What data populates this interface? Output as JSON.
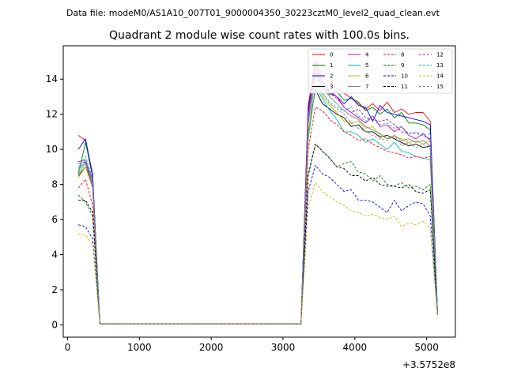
{
  "chart_data": {
    "type": "line",
    "suptitle": "Data file: modeM0/AS1A10_007T01_9000004350_30223cztM0_level2_quad_clean.evt",
    "title": "Quadrant 2 module wise count rates with 100.0s bins.",
    "xlabel": "",
    "ylabel": "",
    "x_offset_label": "+3.5752e8",
    "xlim": [
      -60,
      5400
    ],
    "ylim": [
      -0.7,
      15.9
    ],
    "xticks": [
      0,
      1000,
      2000,
      3000,
      4000,
      5000
    ],
    "yticks": [
      0,
      2,
      4,
      6,
      8,
      10,
      12,
      14
    ],
    "legend_position": "upper-right",
    "legend_columns": 4,
    "x": [
      150,
      250,
      350,
      450,
      550,
      650,
      750,
      850,
      950,
      1050,
      1150,
      1250,
      1350,
      1450,
      1550,
      1650,
      1750,
      1850,
      1950,
      2050,
      2150,
      2250,
      2350,
      2450,
      2550,
      2650,
      2750,
      2850,
      2950,
      3050,
      3150,
      3250,
      3350,
      3450,
      3550,
      3650,
      3750,
      3850,
      3950,
      4050,
      4150,
      4250,
      4350,
      4450,
      4550,
      4650,
      4750,
      4850,
      4950,
      5050,
      5150
    ],
    "series": [
      {
        "name": "0",
        "color": "#ff0000",
        "dash": "solid",
        "before": [
          10.8,
          10.5,
          8.6
        ],
        "after": [
          12.5,
          15.0,
          14.2,
          13.8,
          13.5,
          13.2,
          12.9,
          12.6,
          12.3,
          12.6,
          12.2,
          12.7,
          12.1,
          12.3,
          12.0,
          12.1,
          12.1,
          11.6,
          0.8
        ]
      },
      {
        "name": "1",
        "color": "#008000",
        "dash": "solid",
        "before": [
          8.6,
          10.4,
          8.4
        ],
        "after": [
          12.2,
          14.3,
          13.6,
          13.1,
          13.3,
          12.8,
          12.9,
          12.7,
          12.2,
          12.4,
          12.0,
          12.3,
          11.8,
          12.1,
          11.5,
          11.5,
          11.4,
          11.1,
          0.7
        ]
      },
      {
        "name": "2",
        "color": "#0000ff",
        "dash": "solid",
        "before": [
          10.0,
          10.6,
          8.5
        ],
        "after": [
          12.4,
          14.6,
          13.9,
          13.3,
          13.0,
          12.6,
          13.0,
          12.5,
          12.4,
          11.6,
          12.5,
          12.1,
          12.0,
          11.9,
          11.8,
          11.7,
          11.6,
          11.4,
          0.8
        ]
      },
      {
        "name": "3",
        "color": "#000000",
        "dash": "solid",
        "before": [
          8.5,
          9.0,
          8.0
        ],
        "after": [
          11.0,
          13.4,
          12.6,
          12.3,
          12.0,
          11.8,
          11.3,
          11.4,
          11.0,
          11.0,
          10.7,
          10.8,
          10.6,
          10.4,
          10.2,
          10.3,
          10.1,
          10.2,
          0.7
        ]
      },
      {
        "name": "4",
        "color": "#c000c0",
        "dash": "solid",
        "before": [
          9.3,
          9.4,
          8.2
        ],
        "after": [
          12.0,
          15.0,
          13.8,
          13.2,
          13.0,
          12.4,
          12.1,
          11.8,
          11.5,
          11.9,
          11.3,
          11.4,
          11.0,
          11.3,
          10.8,
          10.6,
          10.9,
          10.5,
          0.8
        ]
      },
      {
        "name": "5",
        "color": "#00bfbf",
        "dash": "solid",
        "before": [
          8.8,
          9.3,
          8.0
        ],
        "after": [
          10.5,
          13.6,
          12.9,
          12.2,
          11.7,
          11.0,
          11.0,
          10.8,
          10.4,
          10.6,
          10.3,
          10.0,
          10.4,
          9.9,
          9.8,
          9.6,
          9.5,
          9.4,
          0.7
        ]
      },
      {
        "name": "6",
        "color": "#bfbf00",
        "dash": "solid",
        "before": [
          8.4,
          9.0,
          7.8
        ],
        "after": [
          10.8,
          14.2,
          13.0,
          12.5,
          12.1,
          11.6,
          11.5,
          11.6,
          11.2,
          11.3,
          10.8,
          10.6,
          10.7,
          10.6,
          10.4,
          10.5,
          10.3,
          10.5,
          0.7
        ]
      },
      {
        "name": "7",
        "color": "#808080",
        "dash": "solid",
        "before": [
          8.6,
          9.2,
          7.9
        ],
        "after": [
          11.5,
          14.8,
          13.5,
          13.0,
          12.6,
          12.2,
          11.9,
          11.7,
          11.3,
          11.1,
          10.9,
          10.6,
          10.8,
          10.5,
          10.6,
          10.4,
          10.5,
          10.2,
          0.8
        ]
      },
      {
        "name": "8",
        "color": "#ff0000",
        "dash": "dashed",
        "before": [
          7.8,
          8.3,
          6.8
        ],
        "after": [
          10.0,
          12.4,
          12.2,
          11.7,
          11.4,
          11.0,
          10.8,
          10.5,
          10.6,
          10.3,
          10.1,
          9.9,
          9.8,
          9.7,
          9.5,
          9.6,
          9.5,
          9.6,
          0.7
        ]
      },
      {
        "name": "9",
        "color": "#008000",
        "dash": "dashed",
        "before": [
          7.4,
          7.0,
          6.2
        ],
        "after": [
          8.6,
          10.3,
          9.9,
          9.5,
          9.0,
          9.2,
          9.3,
          8.7,
          8.6,
          8.2,
          8.5,
          8.0,
          7.9,
          8.1,
          7.8,
          7.9,
          7.7,
          8.0,
          0.6
        ]
      },
      {
        "name": "10",
        "color": "#0000ff",
        "dash": "dashed",
        "before": [
          5.7,
          5.6,
          4.9
        ],
        "after": [
          7.6,
          9.1,
          8.6,
          8.4,
          8.0,
          7.6,
          7.7,
          7.1,
          7.1,
          7.0,
          6.7,
          6.4,
          7.1,
          6.5,
          6.8,
          7.0,
          6.9,
          6.2,
          0.6
        ]
      },
      {
        "name": "11",
        "color": "#000000",
        "dash": "dashed",
        "before": [
          7.1,
          7.1,
          6.4
        ],
        "after": [
          8.5,
          10.3,
          9.9,
          9.5,
          9.0,
          8.9,
          8.5,
          8.5,
          8.2,
          8.4,
          8.0,
          7.9,
          7.9,
          7.8,
          8.0,
          7.6,
          7.5,
          7.7,
          0.6
        ]
      },
      {
        "name": "12",
        "color": "#c000c0",
        "dash": "dashed",
        "before": [
          9.2,
          9.3,
          7.8
        ],
        "after": [
          11.8,
          14.6,
          13.6,
          13.2,
          12.9,
          12.4,
          12.1,
          12.3,
          11.8,
          11.7,
          11.6,
          11.7,
          11.4,
          11.0,
          10.9,
          10.9,
          10.8,
          10.6,
          0.8
        ]
      },
      {
        "name": "13",
        "color": "#00bfbf",
        "dash": "dashed",
        "before": [
          9.0,
          9.6,
          8.3
        ],
        "after": [
          11.6,
          14.1,
          13.2,
          12.7,
          12.4,
          12.2,
          12.4,
          11.9,
          11.6,
          11.9,
          11.4,
          11.5,
          11.2,
          11.3,
          10.9,
          11.0,
          10.8,
          10.9,
          0.8
        ]
      },
      {
        "name": "14",
        "color": "#bfbf00",
        "dash": "dashed",
        "before": [
          5.2,
          5.1,
          4.6
        ],
        "after": [
          6.7,
          8.1,
          7.6,
          7.3,
          7.0,
          6.8,
          6.5,
          6.4,
          6.2,
          6.3,
          6.1,
          6.0,
          6.2,
          5.6,
          5.8,
          5.7,
          5.9,
          5.5,
          0.6
        ]
      },
      {
        "name": "15",
        "color": "#808080",
        "dash": "dashed",
        "before": [
          8.9,
          9.4,
          8.1
        ],
        "after": [
          11.4,
          14.2,
          13.2,
          12.6,
          12.3,
          12.0,
          11.5,
          11.2,
          11.0,
          10.8,
          10.6,
          10.5,
          10.8,
          10.2,
          10.4,
          10.1,
          10.3,
          10.0,
          0.8
        ]
      }
    ]
  }
}
